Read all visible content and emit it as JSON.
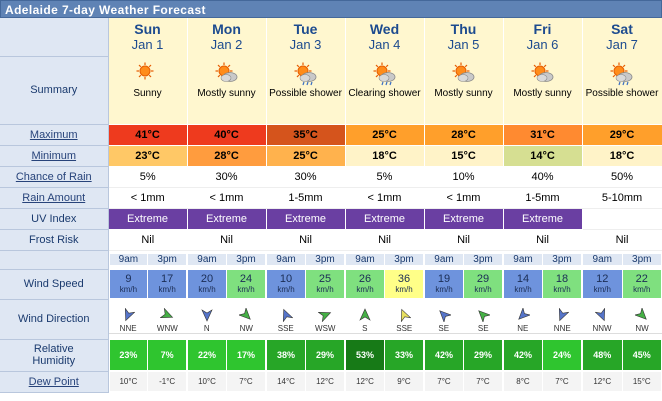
{
  "header": {
    "title": "Adelaide 7-day Weather Forecast"
  },
  "days": [
    {
      "name": "Sun",
      "date": "Jan 1",
      "summary": "Sunny",
      "icon": "sunny-icon",
      "max": "41°C",
      "min": "23°C",
      "rain_chance": "5%",
      "rain_amount": "< 1mm",
      "uv": "Extreme",
      "frost": "Nil"
    },
    {
      "name": "Mon",
      "date": "Jan 2",
      "summary": "Mostly sunny",
      "icon": "mostly-sunny-icon",
      "max": "40°C",
      "min": "28°C",
      "rain_chance": "30%",
      "rain_amount": "< 1mm",
      "uv": "Extreme",
      "frost": "Nil"
    },
    {
      "name": "Tue",
      "date": "Jan 3",
      "summary": "Possible shower",
      "icon": "possible-shower-icon",
      "max": "35°C",
      "min": "25°C",
      "rain_chance": "30%",
      "rain_amount": "1-5mm",
      "uv": "Extreme",
      "frost": "Nil"
    },
    {
      "name": "Wed",
      "date": "Jan 4",
      "summary": "Clearing shower",
      "icon": "clearing-shower-icon",
      "max": "25°C",
      "min": "18°C",
      "rain_chance": "5%",
      "rain_amount": "< 1mm",
      "uv": "Extreme",
      "frost": "Nil"
    },
    {
      "name": "Thu",
      "date": "Jan 5",
      "summary": "Mostly sunny",
      "icon": "mostly-sunny-icon",
      "max": "28°C",
      "min": "15°C",
      "rain_chance": "10%",
      "rain_amount": "< 1mm",
      "uv": "Extreme",
      "frost": "Nil"
    },
    {
      "name": "Fri",
      "date": "Jan 6",
      "summary": "Mostly sunny",
      "icon": "mostly-sunny-icon",
      "max": "31°C",
      "min": "14°C",
      "rain_chance": "40%",
      "rain_amount": "1-5mm",
      "uv": "Extreme",
      "frost": "Nil"
    },
    {
      "name": "Sat",
      "date": "Jan 7",
      "summary": "Possible shower",
      "icon": "possible-shower-icon",
      "max": "29°C",
      "min": "18°C",
      "rain_chance": "50%",
      "rain_amount": "5-10mm",
      "uv": "",
      "frost": "Nil"
    }
  ],
  "labels": {
    "summary": "Summary",
    "maximum": "Maximum",
    "minimum": "Minimum",
    "rain_chance": "Chance of Rain",
    "rain_amount": "Rain Amount",
    "uv": "UV Index",
    "frost": "Frost Risk",
    "wind_speed": "Wind Speed",
    "wind_direction": "Wind Direction",
    "humidity_1": "Relative",
    "humidity_2": "Humidity",
    "dew": "Dew Point"
  },
  "hours": [
    "9am",
    "3pm"
  ],
  "wind_unit": "km/h",
  "wind": [
    {
      "speed": "9",
      "dir": "NNE"
    },
    {
      "speed": "17",
      "dir": "WNW"
    },
    {
      "speed": "20",
      "dir": "N"
    },
    {
      "speed": "24",
      "dir": "NW"
    },
    {
      "speed": "10",
      "dir": "SSE"
    },
    {
      "speed": "25",
      "dir": "WSW"
    },
    {
      "speed": "26",
      "dir": "S"
    },
    {
      "speed": "36",
      "dir": "SSE"
    },
    {
      "speed": "19",
      "dir": "SE"
    },
    {
      "speed": "29",
      "dir": "SE"
    },
    {
      "speed": "14",
      "dir": "NE"
    },
    {
      "speed": "18",
      "dir": "NNE"
    },
    {
      "speed": "12",
      "dir": "NNW"
    },
    {
      "speed": "22",
      "dir": "NW"
    }
  ],
  "humidity": [
    "23%",
    "7%",
    "22%",
    "17%",
    "38%",
    "29%",
    "53%",
    "33%",
    "42%",
    "29%",
    "42%",
    "24%",
    "48%",
    "45%"
  ],
  "dew": [
    "10°C",
    "-1°C",
    "10°C",
    "7°C",
    "14°C",
    "12°C",
    "12°C",
    "9°C",
    "7°C",
    "7°C",
    "8°C",
    "7°C",
    "12°C",
    "15°C"
  ],
  "colors": {
    "max": [
      "#ee3a1e",
      "#ee3a1e",
      "#d5541c",
      "#ff9f2b",
      "#ff9f2b",
      "#ff8a30",
      "#ff9f2b"
    ],
    "min": [
      "#ffc866",
      "#ff9c3e",
      "#ffb24d",
      "#fff3c8",
      "#fff3c8",
      "#d6df92",
      "#fff3c8"
    ],
    "wind": [
      "#6e93dd",
      "#6e93dd",
      "#6e93dd",
      "#7fe07f",
      "#6e93dd",
      "#7fe07f",
      "#7fe07f",
      "#ffff88",
      "#6e93dd",
      "#7fe07f",
      "#6e93dd",
      "#7fe07f",
      "#6e93dd",
      "#7fe07f"
    ],
    "humidity": [
      "#2fc52f",
      "#2fc52f",
      "#2fc52f",
      "#2fc52f",
      "#27a627",
      "#27a627",
      "#177a17",
      "#27a627",
      "#27a627",
      "#27a627",
      "#27a627",
      "#2fc52f",
      "#27a627",
      "#27a627"
    ]
  }
}
